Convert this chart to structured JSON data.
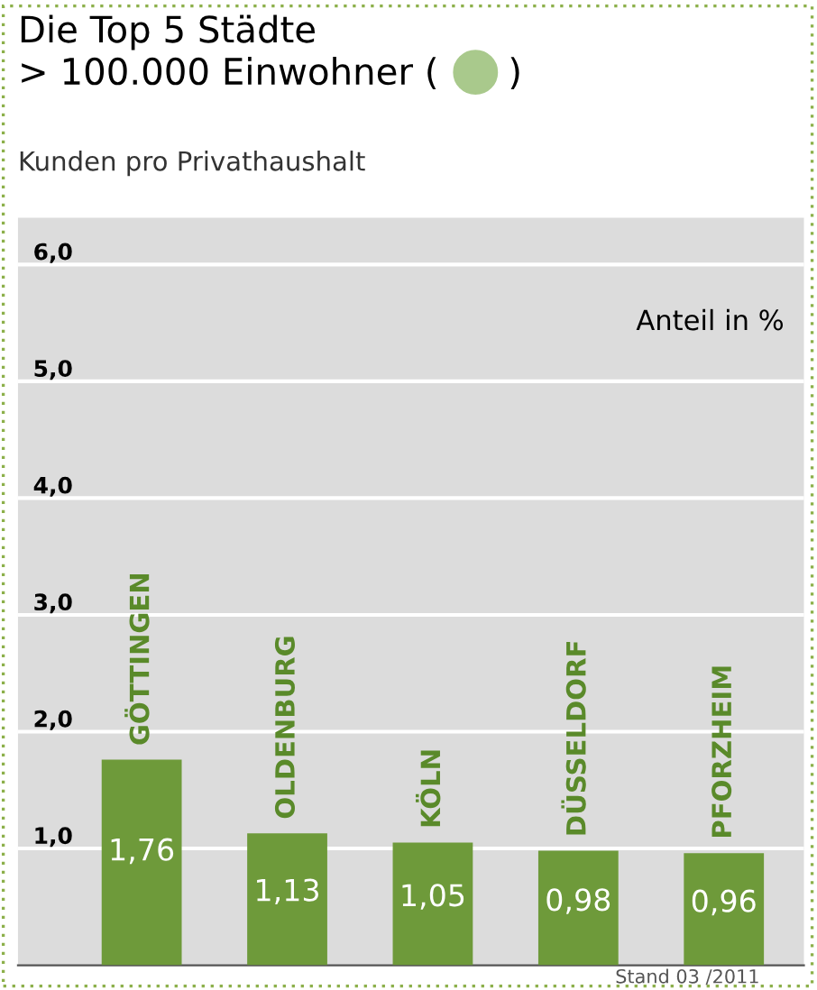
{
  "chart_data": {
    "type": "bar",
    "title": "Die Top 5 Städte\n> 100.000 Einwohner (      )",
    "subtitle": "Kunden pro Privathaushalt",
    "categories": [
      "GÖTTINGEN",
      "OLDENBURG",
      "KÖLN",
      "DÜSSELDORF",
      "PFORZHEIM"
    ],
    "values": [
      1.76,
      1.13,
      1.05,
      0.98,
      0.96
    ],
    "value_labels": [
      "1,76",
      "1,13",
      "1,05",
      "0,98",
      "0,96"
    ],
    "color": "#6e9a3a",
    "ylim": [
      0,
      6.4
    ],
    "yticks": [
      {
        "value": 1,
        "label": "1,0"
      },
      {
        "value": 2,
        "label": "2,0"
      },
      {
        "value": 3,
        "label": "3,0"
      },
      {
        "value": 4,
        "label": "4,0"
      },
      {
        "value": 5,
        "label": "5,0"
      },
      {
        "value": 6,
        "label": "6,0"
      }
    ],
    "grid": "y",
    "annotations": [
      "Anteil in %",
      "Stand 03 /2011"
    ]
  }
}
